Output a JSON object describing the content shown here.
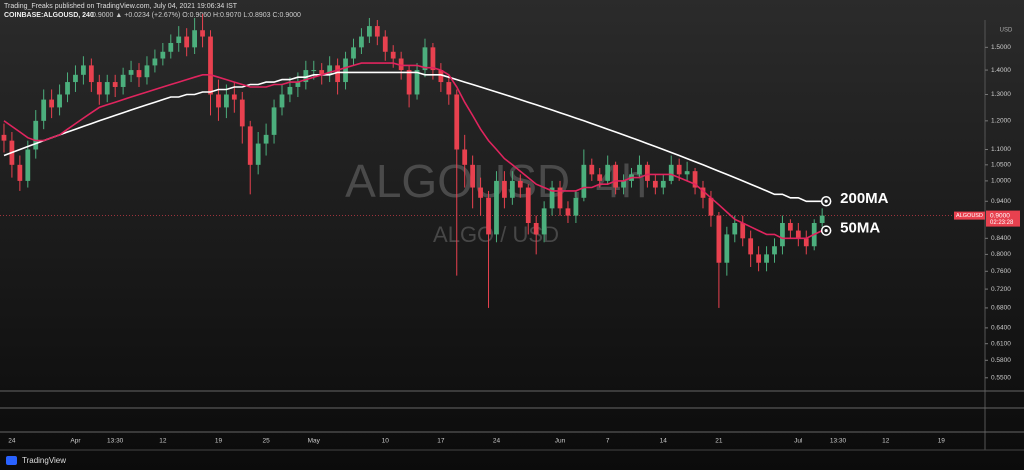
{
  "header": {
    "publisher": "Trading_Freaks published on TradingView.com, July 04, 2021 19:06:34 IST",
    "symbol": "COINBASE:ALGOUSD, 240",
    "quote": "0.9000 ▲ +0.0234 (+2.67%) O:0.9060 H:0.9070 L:0.8903 C:0.9000"
  },
  "footer": {
    "brand": "TradingView"
  },
  "chart_data": {
    "type": "candlestick",
    "watermark": "ALGOUSD, 4h",
    "watermark_sub": "ALGO / USD",
    "axis_unit": "USD",
    "symbol_tag": "ALGOUSD",
    "countdown": "02:23:28",
    "last_price": {
      "value": 0.9,
      "label": "0.9000"
    },
    "up_color": "#4caf7d",
    "down_color": "#e8414f",
    "log_scale": true,
    "grid": false,
    "ylim": [
      0.53,
      1.62
    ],
    "yticks": [
      {
        "value": 1.5,
        "label": "1.5000"
      },
      {
        "value": 1.4,
        "label": "1.4000"
      },
      {
        "value": 1.3,
        "label": "1.3000"
      },
      {
        "value": 1.2,
        "label": "1.2000"
      },
      {
        "value": 1.1,
        "label": "1.1000"
      },
      {
        "value": 1.05,
        "label": "1.0500"
      },
      {
        "value": 1,
        "label": "1.0000"
      },
      {
        "value": 0.94,
        "label": "0.9400"
      },
      {
        "value": 0.84,
        "label": "0.8400"
      },
      {
        "value": 0.8,
        "label": "0.8000"
      },
      {
        "value": 0.76,
        "label": "0.7600"
      },
      {
        "value": 0.72,
        "label": "0.7200"
      },
      {
        "value": 0.68,
        "label": "0.6800"
      },
      {
        "value": 0.64,
        "label": "0.6400"
      },
      {
        "value": 0.61,
        "label": "0.6100"
      },
      {
        "value": 0.58,
        "label": "0.5800"
      },
      {
        "value": 0.55,
        "label": "0.5500"
      }
    ],
    "categories": [
      null,
      "24",
      null,
      null,
      null,
      null,
      null,
      null,
      null,
      "Apr",
      null,
      null,
      null,
      null,
      "13:30",
      null,
      null,
      null,
      null,
      null,
      "12",
      null,
      null,
      null,
      null,
      null,
      null,
      "19",
      null,
      null,
      null,
      null,
      null,
      "25",
      null,
      null,
      null,
      null,
      null,
      "May",
      null,
      null,
      null,
      null,
      null,
      null,
      null,
      null,
      "10",
      null,
      null,
      null,
      null,
      null,
      null,
      "17",
      null,
      null,
      null,
      null,
      null,
      null,
      "24",
      null,
      null,
      null,
      null,
      null,
      null,
      null,
      "Jun",
      null,
      null,
      null,
      null,
      null,
      "7",
      null,
      null,
      null,
      null,
      null,
      null,
      "14",
      null,
      null,
      null,
      null,
      null,
      null,
      "21",
      null,
      null,
      null,
      null,
      null,
      null,
      null,
      null,
      null,
      "Jul",
      null,
      null,
      null,
      null,
      "13:30",
      null,
      null,
      null,
      null,
      null,
      "12",
      null,
      null,
      null,
      null,
      null,
      null,
      "19",
      null,
      null,
      null,
      null,
      null
    ],
    "open": [
      1.15,
      1.13,
      1.05,
      1.0,
      1.1,
      1.2,
      1.28,
      1.25,
      1.3,
      1.35,
      1.38,
      1.42,
      1.35,
      1.3,
      1.35,
      1.33,
      1.38,
      1.4,
      1.37,
      1.42,
      1.45,
      1.48,
      1.52,
      1.55,
      1.5,
      1.58,
      1.55,
      1.3,
      1.25,
      1.3,
      1.28,
      1.18,
      1.05,
      1.12,
      1.15,
      1.25,
      1.3,
      1.33,
      1.35,
      1.4,
      1.4,
      1.38,
      1.42,
      1.35,
      1.45,
      1.5,
      1.55,
      1.6,
      1.55,
      1.48,
      1.45,
      1.4,
      1.3,
      1.4,
      1.5,
      1.4,
      1.35,
      1.3,
      1.1,
      1.05,
      0.98,
      0.95,
      0.85,
      1.0,
      0.95,
      1.0,
      0.98,
      0.88,
      0.85,
      0.92,
      0.98,
      0.92,
      0.9,
      0.95,
      1.05,
      1.02,
      1.0,
      1.05,
      0.98,
      1.0,
      1.02,
      1.05,
      1.0,
      0.98,
      1.0,
      1.05,
      1.02,
      1.03,
      0.98,
      0.95,
      0.9,
      0.78,
      0.85,
      0.88,
      0.84,
      0.8,
      0.78,
      0.8,
      0.82,
      0.88,
      0.86,
      0.84,
      0.82,
      0.88,
      null,
      null,
      null,
      null,
      null,
      null,
      null,
      null,
      null,
      null,
      null,
      null,
      null,
      null,
      null,
      null,
      null,
      null,
      null,
      null
    ],
    "high": [
      1.19,
      1.16,
      1.08,
      1.13,
      1.24,
      1.32,
      1.32,
      1.34,
      1.39,
      1.42,
      1.46,
      1.45,
      1.38,
      1.38,
      1.38,
      1.41,
      1.44,
      1.43,
      1.46,
      1.49,
      1.52,
      1.56,
      1.6,
      1.59,
      1.64,
      1.66,
      1.58,
      1.36,
      1.34,
      1.35,
      1.31,
      1.2,
      1.16,
      1.19,
      1.28,
      1.34,
      1.37,
      1.39,
      1.44,
      1.44,
      1.43,
      1.46,
      1.45,
      1.48,
      1.54,
      1.59,
      1.64,
      1.63,
      1.58,
      1.51,
      1.48,
      1.42,
      1.43,
      1.54,
      1.52,
      1.43,
      1.38,
      1.32,
      1.15,
      1.08,
      1.01,
      0.97,
      1.03,
      1.03,
      1.03,
      1.02,
      0.99,
      0.9,
      0.94,
      1.0,
      1.0,
      0.94,
      0.97,
      1.1,
      1.07,
      1.04,
      1.08,
      1.06,
      1.02,
      1.04,
      1.08,
      1.06,
      1.02,
      1.02,
      1.08,
      1.07,
      1.06,
      1.04,
      1.0,
      0.97,
      0.91,
      0.87,
      0.9,
      0.9,
      0.86,
      0.82,
      0.82,
      0.84,
      0.9,
      0.89,
      0.88,
      0.86,
      0.89,
      0.92,
      null,
      null,
      null,
      null,
      null,
      null,
      null,
      null,
      null,
      null,
      null,
      null,
      null,
      null,
      null,
      null,
      null,
      null,
      null,
      null
    ],
    "low": [
      1.09,
      1.01,
      0.97,
      0.98,
      1.07,
      1.17,
      1.21,
      1.22,
      1.27,
      1.31,
      1.34,
      1.31,
      1.26,
      1.27,
      1.29,
      1.3,
      1.35,
      1.33,
      1.34,
      1.39,
      1.42,
      1.45,
      1.48,
      1.46,
      1.47,
      1.5,
      1.22,
      1.2,
      1.21,
      1.23,
      1.12,
      0.96,
      1.02,
      1.08,
      1.12,
      1.22,
      1.27,
      1.29,
      1.32,
      1.36,
      1.34,
      1.35,
      1.3,
      1.32,
      1.42,
      1.47,
      1.52,
      1.51,
      1.44,
      1.41,
      1.36,
      1.25,
      1.28,
      1.37,
      1.36,
      1.31,
      1.26,
      0.75,
      0.98,
      0.92,
      0.9,
      0.68,
      0.83,
      0.92,
      0.93,
      0.95,
      0.85,
      0.8,
      0.83,
      0.9,
      0.9,
      0.88,
      0.88,
      0.94,
      1.0,
      0.98,
      0.99,
      0.96,
      0.96,
      0.98,
      1.01,
      0.98,
      0.96,
      0.96,
      0.99,
      1.0,
      1.0,
      0.96,
      0.92,
      0.87,
      0.68,
      0.75,
      0.83,
      0.82,
      0.77,
      0.76,
      0.76,
      0.78,
      0.8,
      0.84,
      0.82,
      0.8,
      0.81,
      0.87,
      null,
      null,
      null,
      null,
      null,
      null,
      null,
      null,
      null,
      null,
      null,
      null,
      null,
      null,
      null,
      null,
      null,
      null,
      null,
      null
    ],
    "close": [
      1.13,
      1.05,
      1.0,
      1.1,
      1.2,
      1.28,
      1.25,
      1.3,
      1.35,
      1.38,
      1.42,
      1.35,
      1.3,
      1.35,
      1.33,
      1.38,
      1.4,
      1.37,
      1.42,
      1.45,
      1.48,
      1.52,
      1.55,
      1.5,
      1.58,
      1.55,
      1.3,
      1.25,
      1.3,
      1.28,
      1.18,
      1.05,
      1.12,
      1.15,
      1.25,
      1.3,
      1.33,
      1.35,
      1.4,
      1.4,
      1.38,
      1.42,
      1.35,
      1.45,
      1.5,
      1.55,
      1.6,
      1.55,
      1.48,
      1.45,
      1.4,
      1.3,
      1.4,
      1.5,
      1.4,
      1.35,
      1.3,
      1.1,
      1.05,
      0.98,
      0.95,
      0.85,
      1.0,
      0.95,
      1.0,
      0.98,
      0.88,
      0.85,
      0.92,
      0.98,
      0.92,
      0.9,
      0.95,
      1.05,
      1.02,
      1.0,
      1.05,
      0.98,
      1.0,
      1.02,
      1.05,
      1.0,
      0.98,
      1.0,
      1.05,
      1.02,
      1.03,
      0.98,
      0.95,
      0.9,
      0.78,
      0.85,
      0.88,
      0.84,
      0.8,
      0.78,
      0.8,
      0.82,
      0.88,
      0.86,
      0.84,
      0.82,
      0.88,
      0.9,
      null,
      null,
      null,
      null,
      null,
      null,
      null,
      null,
      null,
      null,
      null,
      null,
      null,
      null,
      null,
      null,
      null,
      null,
      null,
      null
    ],
    "series": [
      {
        "name": "200MA",
        "color": "#ffffff",
        "values": [
          1.08,
          1.09,
          1.1,
          1.11,
          1.12,
          1.13,
          1.14,
          1.15,
          1.16,
          1.17,
          1.18,
          1.19,
          1.2,
          1.21,
          1.22,
          1.23,
          1.24,
          1.25,
          1.26,
          1.27,
          1.28,
          1.29,
          1.29,
          1.3,
          1.3,
          1.31,
          1.31,
          1.32,
          1.32,
          1.33,
          1.33,
          1.34,
          1.34,
          1.35,
          1.35,
          1.36,
          1.36,
          1.37,
          1.37,
          1.38,
          1.38,
          1.38,
          1.39,
          1.39,
          1.39,
          1.39,
          1.39,
          1.39,
          1.39,
          1.39,
          1.39,
          1.39,
          1.39,
          1.38,
          1.38,
          1.38,
          1.37,
          1.36,
          1.35,
          1.34,
          1.33,
          1.32,
          1.31,
          1.3,
          1.29,
          1.28,
          1.27,
          1.26,
          1.25,
          1.24,
          1.23,
          1.22,
          1.21,
          1.2,
          1.19,
          1.18,
          1.17,
          1.16,
          1.15,
          1.14,
          1.13,
          1.12,
          1.11,
          1.1,
          1.09,
          1.08,
          1.07,
          1.06,
          1.05,
          1.04,
          1.03,
          1.02,
          1.01,
          1.0,
          0.99,
          0.98,
          0.97,
          0.96,
          0.96,
          0.95,
          0.95,
          0.94,
          0.94,
          0.94,
          null,
          null,
          null,
          null,
          null,
          null,
          null,
          null,
          null,
          null,
          null,
          null,
          null,
          null,
          null,
          null,
          null,
          null,
          null,
          null
        ]
      },
      {
        "name": "50MA",
        "color": "#e0245e",
        "values": [
          1.2,
          1.18,
          1.16,
          1.14,
          1.13,
          1.13,
          1.14,
          1.15,
          1.17,
          1.19,
          1.21,
          1.23,
          1.25,
          1.26,
          1.27,
          1.28,
          1.29,
          1.3,
          1.31,
          1.32,
          1.33,
          1.34,
          1.35,
          1.36,
          1.37,
          1.38,
          1.38,
          1.37,
          1.36,
          1.35,
          1.34,
          1.33,
          1.33,
          1.33,
          1.34,
          1.34,
          1.35,
          1.35,
          1.36,
          1.37,
          1.38,
          1.39,
          1.4,
          1.41,
          1.42,
          1.43,
          1.43,
          1.43,
          1.43,
          1.43,
          1.42,
          1.42,
          1.42,
          1.41,
          1.41,
          1.4,
          1.38,
          1.33,
          1.27,
          1.22,
          1.17,
          1.13,
          1.1,
          1.07,
          1.05,
          1.03,
          1.01,
          0.99,
          0.98,
          0.97,
          0.97,
          0.97,
          0.97,
          0.98,
          0.98,
          0.99,
          0.99,
          1.0,
          1.0,
          1.01,
          1.01,
          1.02,
          1.02,
          1.02,
          1.02,
          1.01,
          1.0,
          0.99,
          0.97,
          0.95,
          0.93,
          0.91,
          0.89,
          0.88,
          0.87,
          0.86,
          0.85,
          0.85,
          0.84,
          0.84,
          0.84,
          0.84,
          0.85,
          0.86,
          null,
          null,
          null,
          null,
          null,
          null,
          null,
          null,
          null,
          null,
          null,
          null,
          null,
          null,
          null,
          null,
          null,
          null,
          null,
          null
        ]
      }
    ]
  }
}
